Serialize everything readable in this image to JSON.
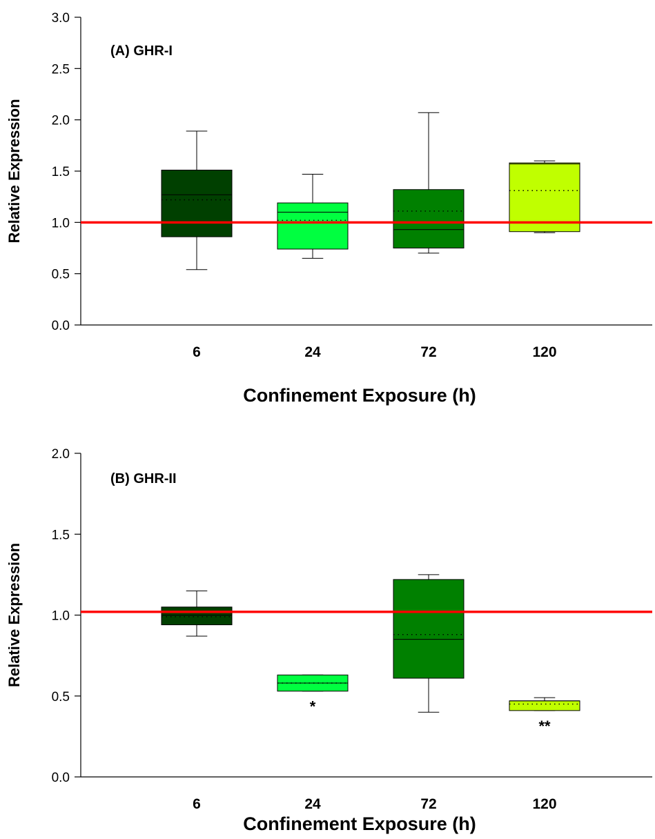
{
  "chart_data": [
    {
      "type": "box",
      "title": "(A) GHR-I",
      "xlabel": "Confinement Exposure (h)",
      "ylabel": "Relative Expression",
      "ylim": [
        0,
        3.0
      ],
      "yticks": [
        "0.0",
        "0.5",
        "1.0",
        "1.5",
        "2.0",
        "2.5",
        "3.0"
      ],
      "categories": [
        "6",
        "24",
        "72",
        "120"
      ],
      "reference_line": {
        "y": 1.0,
        "color": "#ff0000"
      },
      "boxes": [
        {
          "category": "6",
          "min": 0.54,
          "q1": 0.86,
          "median": 1.27,
          "mean": 1.22,
          "q3": 1.51,
          "max": 1.89,
          "color": "#004000",
          "annotation": ""
        },
        {
          "category": "24",
          "min": 0.65,
          "q1": 0.74,
          "median": 1.1,
          "mean": 1.02,
          "q3": 1.19,
          "max": 1.47,
          "color": "#00ff40",
          "annotation": ""
        },
        {
          "category": "72",
          "min": 0.7,
          "q1": 0.75,
          "median": 0.93,
          "mean": 1.11,
          "q3": 1.32,
          "max": 2.07,
          "color": "#008000",
          "annotation": ""
        },
        {
          "category": "120",
          "min": 0.9,
          "q1": 0.91,
          "median": 1.57,
          "mean": 1.31,
          "q3": 1.58,
          "max": 1.6,
          "color": "#c0ff00",
          "annotation": ""
        }
      ]
    },
    {
      "type": "box",
      "title": "(B) GHR-II",
      "xlabel": "Confinement Exposure (h)",
      "ylabel": "Relative Expression",
      "ylim": [
        0,
        2.0
      ],
      "yticks": [
        "0.0",
        "0.5",
        "1.0",
        "1.5",
        "2.0"
      ],
      "categories": [
        "6",
        "24",
        "72",
        "120"
      ],
      "reference_line": {
        "y": 1.02,
        "color": "#ff0000"
      },
      "boxes": [
        {
          "category": "6",
          "min": 0.87,
          "q1": 0.94,
          "median": 1.0,
          "mean": 0.99,
          "q3": 1.05,
          "max": 1.15,
          "color": "#004000",
          "annotation": ""
        },
        {
          "category": "24",
          "min": 0.53,
          "q1": 0.53,
          "median": 0.58,
          "mean": 0.58,
          "q3": 0.63,
          "max": 0.63,
          "color": "#00ff40",
          "annotation": "*"
        },
        {
          "category": "72",
          "min": 0.4,
          "q1": 0.61,
          "median": 0.85,
          "mean": 0.88,
          "q3": 1.22,
          "max": 1.25,
          "color": "#008000",
          "annotation": ""
        },
        {
          "category": "120",
          "min": 0.41,
          "q1": 0.41,
          "median": 0.47,
          "mean": 0.45,
          "q3": 0.47,
          "max": 0.49,
          "color": "#c0ff00",
          "annotation": "**"
        }
      ]
    }
  ]
}
